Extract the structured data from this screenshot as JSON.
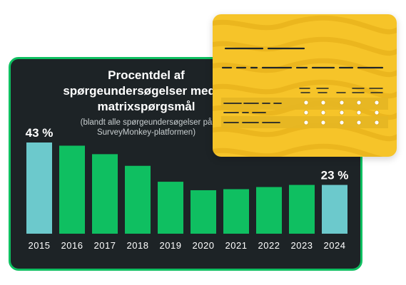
{
  "colors": {
    "card_bg": "#1d2326",
    "card_border": "#0fbf61",
    "bar_green": "#0fbf61",
    "bar_highlight": "#6cc9cc",
    "text_white": "#ffffff",
    "survey_yellow": "#f6c429",
    "survey_ink": "#1f2529"
  },
  "chart_data": {
    "type": "bar",
    "title": "Procentdel af spørgeundersøgelser med et matrixspørgsmål",
    "subtitle": "(blandt alle spørgeundersøgelser på SurveyMonkey-platformen)",
    "categories": [
      "2015",
      "2016",
      "2017",
      "2018",
      "2019",
      "2020",
      "2021",
      "2022",
      "2023",
      "2024"
    ],
    "values": [
      43,
      41.5,
      37.5,
      32,
      24.5,
      20.5,
      21,
      22,
      23,
      23
    ],
    "highlighted": [
      "2015",
      "2024"
    ],
    "data_labels": {
      "2015": "43 %",
      "2024": "23 %"
    },
    "ylim": [
      0,
      43
    ],
    "grid": false,
    "xlabel": "",
    "ylabel": ""
  }
}
